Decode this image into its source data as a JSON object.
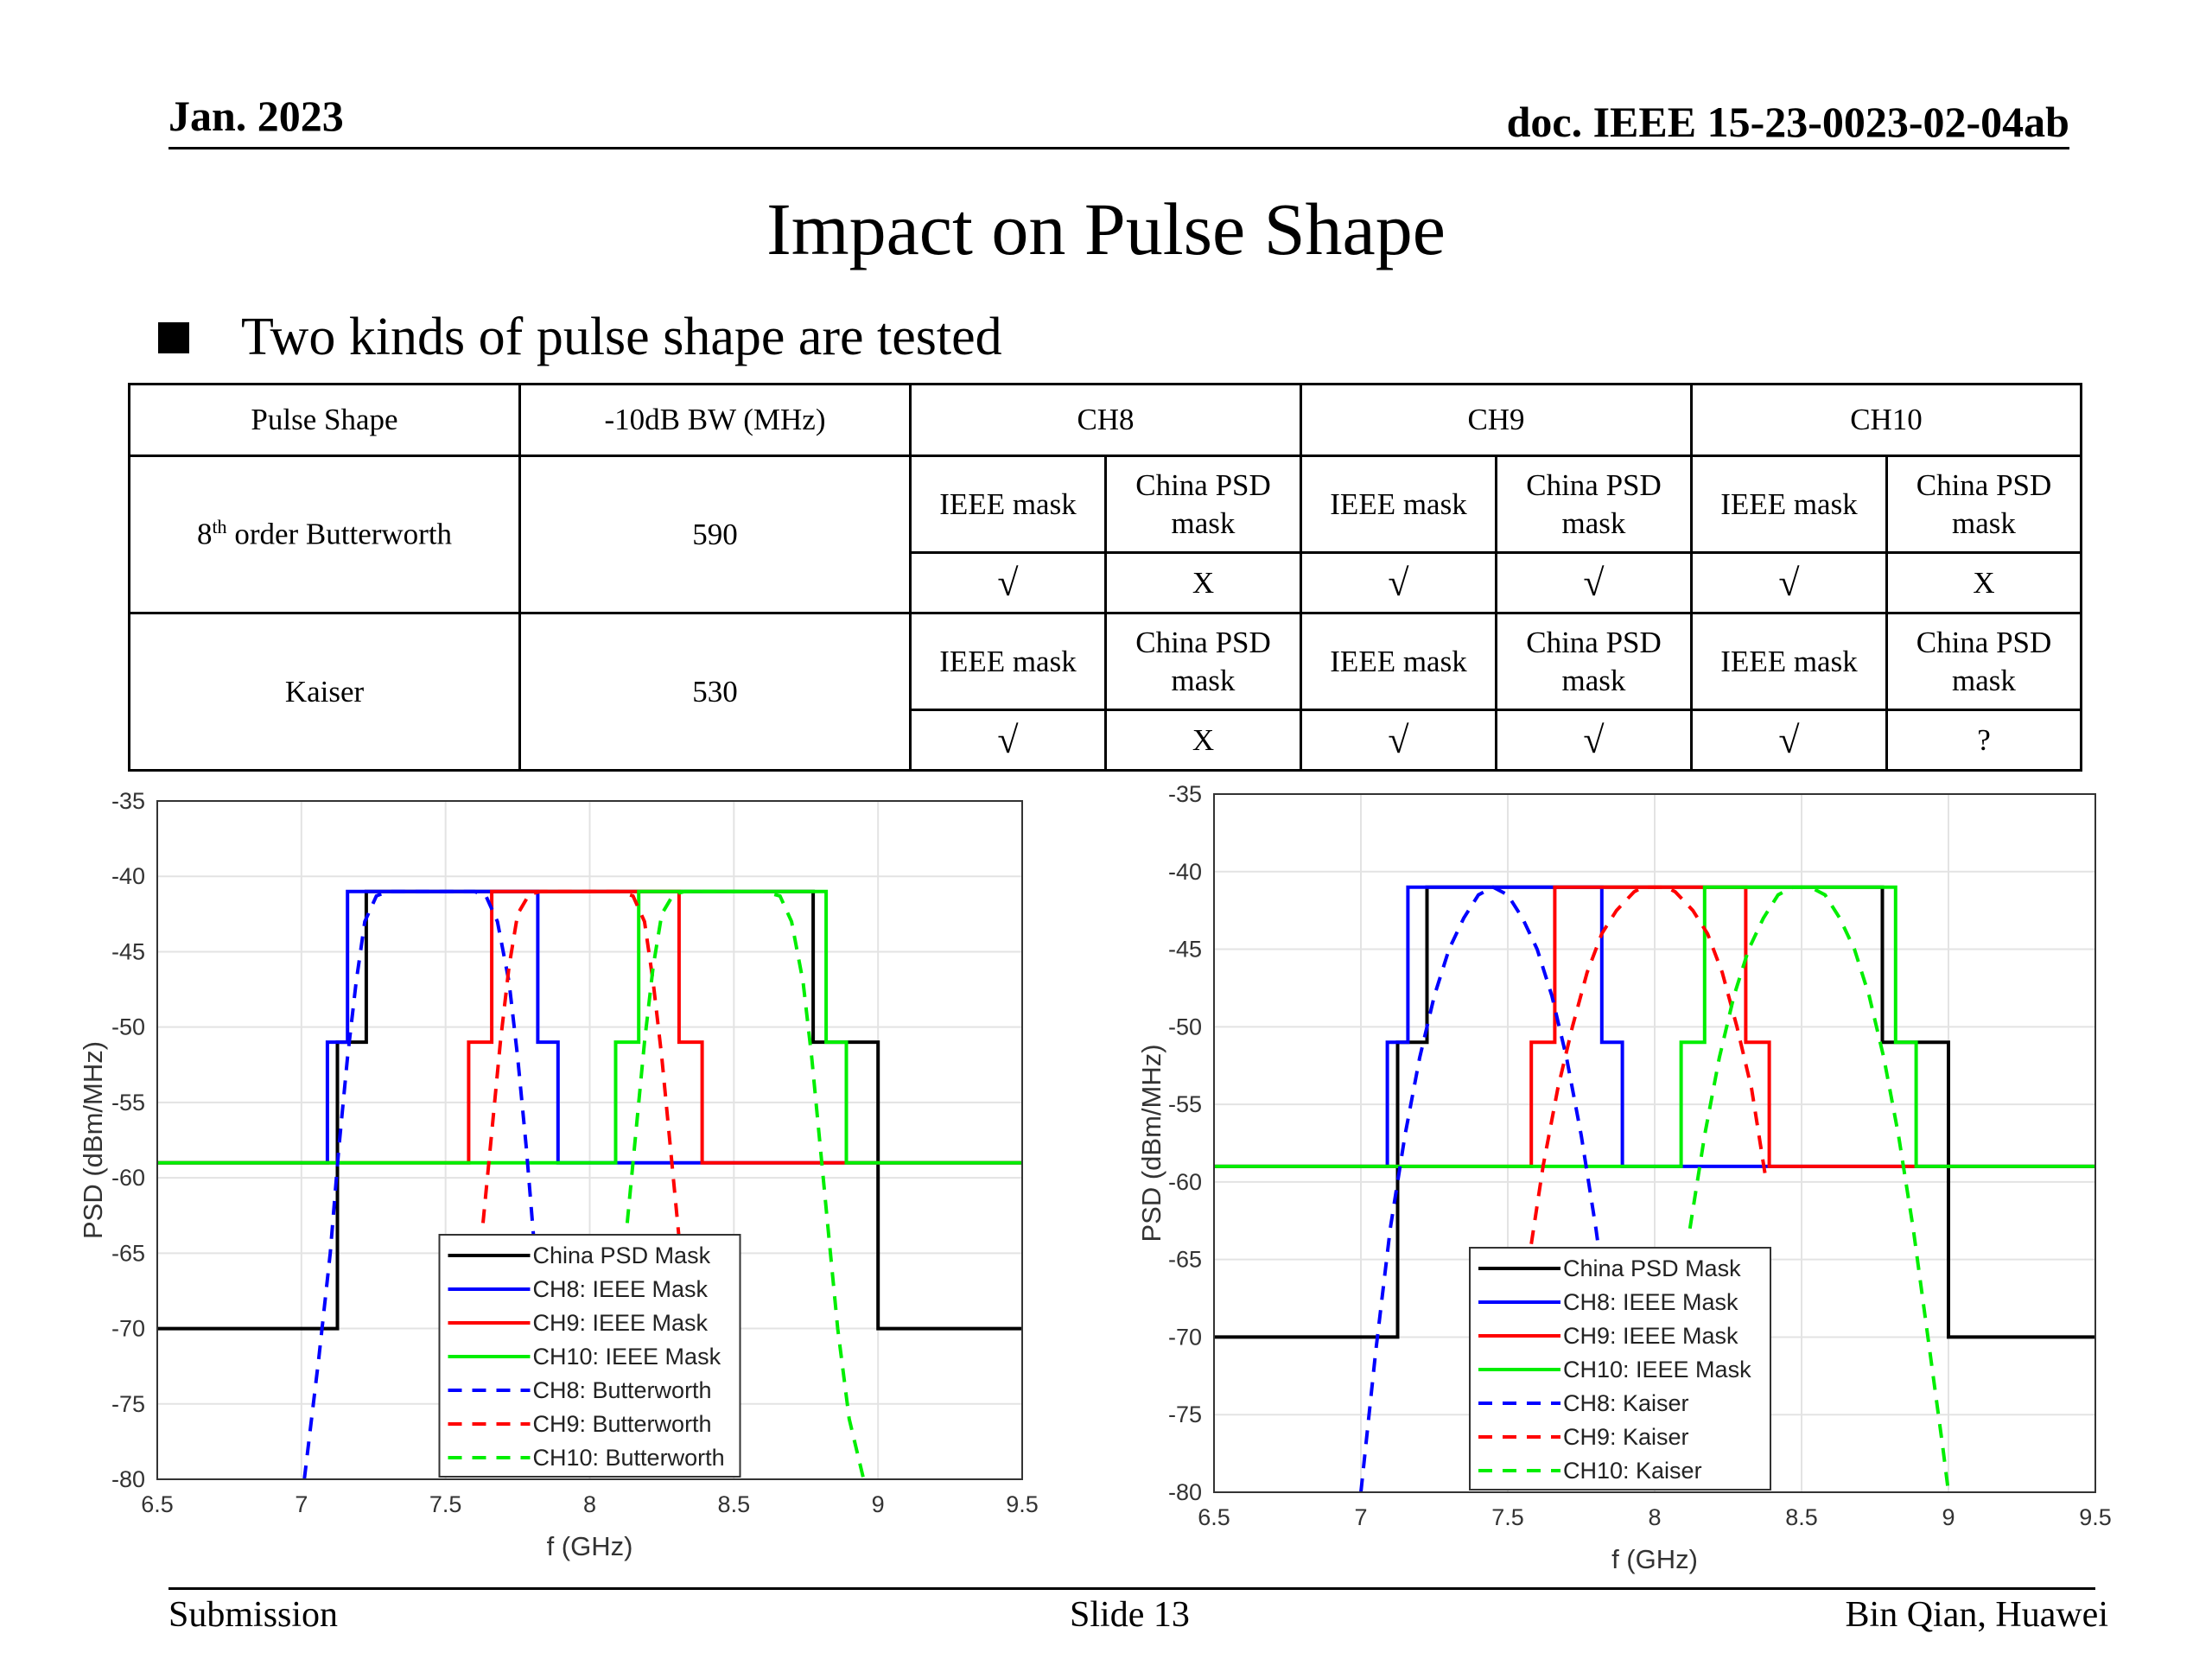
{
  "header": {
    "date": "Jan. 2023",
    "doc": "doc. IEEE 15-23-0023-02-04ab"
  },
  "title": "Impact on Pulse Shape",
  "bullet": "Two kinds of pulse shape are tested",
  "table": {
    "col_headers": [
      "Pulse Shape",
      "-10dB BW (MHz)",
      "CH8",
      "CH9",
      "CH10"
    ],
    "mask_labels": {
      "ieee": "IEEE mask",
      "china_line1": "China PSD",
      "china_line2": "mask"
    },
    "rows": [
      {
        "shape_pre": "8",
        "shape_sup": "th",
        "shape_post": " order Butterworth",
        "bw": "590",
        "results": [
          "√",
          "X",
          "√",
          "√",
          "√",
          "X"
        ]
      },
      {
        "shape_pre": "Kaiser",
        "shape_sup": "",
        "shape_post": "",
        "bw": "530",
        "results": [
          "√",
          "X",
          "√",
          "√",
          "√",
          "?"
        ]
      }
    ]
  },
  "chart_data": [
    {
      "type": "line",
      "xlabel": "f (GHz)",
      "ylabel": "PSD (dBm/MHz)",
      "xlim": [
        6.5,
        9.5
      ],
      "ylim": [
        -80,
        -35
      ],
      "xticks": [
        6.5,
        7,
        7.5,
        8,
        8.5,
        9,
        9.5
      ],
      "yticks": [
        -35,
        -40,
        -45,
        -50,
        -55,
        -60,
        -65,
        -70,
        -75,
        -80
      ],
      "grid": true,
      "legend_position": "bottom-center",
      "series": [
        {
          "name": "China PSD Mask",
          "color": "#000000",
          "style": "solid",
          "x": [
            6.5,
            7.125,
            7.125,
            7.225,
            7.225,
            8.775,
            8.775,
            9.0,
            9.0,
            9.5
          ],
          "y": [
            -70,
            -70,
            -51,
            -51,
            -41,
            -41,
            -51,
            -51,
            -70,
            -70
          ]
        },
        {
          "name": "CH8: IEEE Mask",
          "color": "#0000ff",
          "style": "solid",
          "x": [
            6.5,
            7.09,
            7.09,
            7.16,
            7.16,
            7.82,
            7.82,
            7.89,
            7.89,
            9.5
          ],
          "y": [
            -59,
            -59,
            -51,
            -51,
            -41,
            -41,
            -51,
            -51,
            -59,
            -59
          ]
        },
        {
          "name": "CH9: IEEE Mask",
          "color": "#ff0000",
          "style": "solid",
          "x": [
            6.5,
            7.58,
            7.58,
            7.66,
            7.66,
            8.31,
            8.31,
            8.39,
            8.39,
            9.5
          ],
          "y": [
            -59,
            -59,
            -51,
            -51,
            -41,
            -41,
            -51,
            -51,
            -59,
            -59
          ]
        },
        {
          "name": "CH10: IEEE Mask",
          "color": "#00ee00",
          "style": "solid",
          "x": [
            6.5,
            8.09,
            8.09,
            8.17,
            8.17,
            8.82,
            8.82,
            8.89,
            8.89,
            9.5
          ],
          "y": [
            -59,
            -59,
            -51,
            -51,
            -41,
            -41,
            -51,
            -51,
            -59,
            -59
          ]
        },
        {
          "name": "CH8: Butterworth",
          "color": "#0000ff",
          "style": "dashed",
          "x": [
            7.01,
            7.06,
            7.1,
            7.13,
            7.16,
            7.19,
            7.22,
            7.26,
            7.3,
            7.4,
            7.5,
            7.6,
            7.64,
            7.68,
            7.72,
            7.75,
            7.78,
            7.81,
            7.84
          ],
          "y": [
            -80,
            -72,
            -65,
            -58,
            -52,
            -47,
            -43,
            -41.3,
            -41,
            -41,
            -41,
            -41,
            -41.3,
            -43,
            -47,
            -52,
            -58,
            -65,
            -72
          ]
        },
        {
          "name": "CH9: Butterworth",
          "color": "#ff0000",
          "style": "dashed",
          "x": [
            7.63,
            7.66,
            7.69,
            7.72,
            7.75,
            7.79,
            7.83,
            7.9,
            8.0,
            8.1,
            8.15,
            8.19,
            8.22,
            8.25,
            8.28,
            8.31,
            8.34
          ],
          "y": [
            -63,
            -57,
            -51,
            -46,
            -42.5,
            -41.2,
            -41,
            -41,
            -41,
            -41,
            -41.3,
            -43,
            -47,
            -52,
            -58,
            -64,
            -70
          ]
        },
        {
          "name": "CH10: Butterworth",
          "color": "#00ee00",
          "style": "dashed",
          "x": [
            8.13,
            8.16,
            8.19,
            8.22,
            8.25,
            8.29,
            8.33,
            8.4,
            8.5,
            8.6,
            8.66,
            8.7,
            8.74,
            8.77,
            8.8,
            8.83,
            8.86,
            8.9,
            8.95
          ],
          "y": [
            -63,
            -57,
            -51,
            -46,
            -42.5,
            -41.2,
            -41,
            -41,
            -41,
            -41,
            -41.3,
            -43,
            -47,
            -52,
            -58,
            -64,
            -70,
            -76,
            -80
          ]
        }
      ]
    },
    {
      "type": "line",
      "xlabel": "f (GHz)",
      "ylabel": "PSD (dBm/MHz)",
      "xlim": [
        6.5,
        9.5
      ],
      "ylim": [
        -80,
        -35
      ],
      "xticks": [
        6.5,
        7,
        7.5,
        8,
        8.5,
        9,
        9.5
      ],
      "yticks": [
        -35,
        -40,
        -45,
        -50,
        -55,
        -60,
        -65,
        -70,
        -75,
        -80
      ],
      "grid": true,
      "legend_position": "bottom-center",
      "series": [
        {
          "name": "China PSD Mask",
          "color": "#000000",
          "style": "solid",
          "x": [
            6.5,
            7.125,
            7.125,
            7.225,
            7.225,
            8.775,
            8.775,
            9.0,
            9.0,
            9.5
          ],
          "y": [
            -70,
            -70,
            -51,
            -51,
            -41,
            -41,
            -51,
            -51,
            -70,
            -70
          ]
        },
        {
          "name": "CH8: IEEE Mask",
          "color": "#0000ff",
          "style": "solid",
          "x": [
            6.5,
            7.09,
            7.09,
            7.16,
            7.16,
            7.82,
            7.82,
            7.89,
            7.89,
            9.5
          ],
          "y": [
            -59,
            -59,
            -51,
            -51,
            -41,
            -41,
            -51,
            -51,
            -59,
            -59
          ]
        },
        {
          "name": "CH9: IEEE Mask",
          "color": "#ff0000",
          "style": "solid",
          "x": [
            6.5,
            7.58,
            7.58,
            7.66,
            7.66,
            8.31,
            8.31,
            8.39,
            8.39,
            9.5
          ],
          "y": [
            -59,
            -59,
            -51,
            -51,
            -41,
            -41,
            -51,
            -51,
            -59,
            -59
          ]
        },
        {
          "name": "CH10: IEEE Mask",
          "color": "#00ee00",
          "style": "solid",
          "x": [
            6.5,
            8.09,
            8.09,
            8.17,
            8.17,
            8.82,
            8.82,
            8.89,
            8.89,
            9.5
          ],
          "y": [
            -59,
            -59,
            -51,
            -51,
            -41,
            -41,
            -51,
            -51,
            -59,
            -59
          ]
        },
        {
          "name": "CH8: Kaiser",
          "color": "#0000ff",
          "style": "dashed",
          "x": [
            7.0,
            7.05,
            7.1,
            7.15,
            7.2,
            7.25,
            7.3,
            7.35,
            7.4,
            7.45,
            7.5,
            7.55,
            7.6,
            7.65,
            7.7,
            7.75,
            7.8,
            7.85,
            7.88
          ],
          "y": [
            -80,
            -71,
            -63,
            -57,
            -52,
            -48,
            -45,
            -43,
            -41.5,
            -41,
            -41.5,
            -43,
            -45,
            -48,
            -52,
            -57,
            -63,
            -70,
            -75
          ]
        },
        {
          "name": "CH9: Kaiser",
          "color": "#ff0000",
          "style": "dashed",
          "x": [
            7.58,
            7.62,
            7.67,
            7.72,
            7.77,
            7.82,
            7.87,
            7.93,
            7.96,
            8.0,
            8.04,
            8.07,
            8.13,
            8.18,
            8.23,
            8.28,
            8.33,
            8.38
          ],
          "y": [
            -64,
            -59,
            -54,
            -50,
            -46.5,
            -44,
            -42.5,
            -41.3,
            -41,
            -41,
            -41,
            -41.3,
            -42.5,
            -44,
            -46.5,
            -50,
            -54,
            -60
          ]
        },
        {
          "name": "CH10: Kaiser",
          "color": "#00ee00",
          "style": "dashed",
          "x": [
            8.12,
            8.17,
            8.22,
            8.27,
            8.32,
            8.37,
            8.42,
            8.47,
            8.5,
            8.53,
            8.58,
            8.63,
            8.68,
            8.73,
            8.78,
            8.83,
            8.88,
            8.93,
            8.98,
            9.0
          ],
          "y": [
            -63,
            -57,
            -52,
            -48,
            -45,
            -43,
            -41.5,
            -41,
            -41,
            -41,
            -41.5,
            -43,
            -45,
            -48,
            -52,
            -57,
            -63,
            -70,
            -77,
            -80
          ]
        }
      ]
    }
  ],
  "footer": {
    "left": "Submission",
    "center": "Slide 13",
    "right": "Bin Qian, Huawei"
  }
}
